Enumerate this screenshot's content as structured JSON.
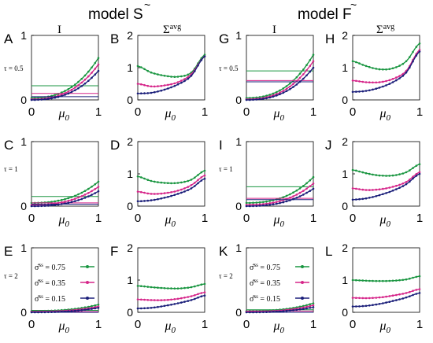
{
  "figure": {
    "model_S_title": "model S",
    "model_S_accent": "~",
    "model_F_title": "model F",
    "model_F_accent": "~",
    "col_I_title": "I",
    "col_sigma_title": "Σ",
    "col_sigma_sup": "avg",
    "row_tau_labels": [
      "τ = 0.5",
      "τ = 1",
      "τ = 2"
    ],
    "panel_letters": [
      "A",
      "B",
      "G",
      "H",
      "C",
      "D",
      "I",
      "J",
      "E",
      "F",
      "K",
      "L"
    ],
    "x_axis_label": "μ",
    "x_axis_sub": "0",
    "x_ticks": [
      "0",
      "1"
    ],
    "I_yticks": [
      "0",
      "1"
    ],
    "sigma_yticks": [
      "0",
      "1",
      "2"
    ],
    "legend": [
      {
        "text": "σ̂ = 0.75",
        "sup": "ss",
        "color": "#1a9641"
      },
      {
        "text": "σ̂ = 0.35",
        "sup": "ss",
        "color": "#d6268a"
      },
      {
        "text": "σ̂ = 0.15",
        "sup": "ss",
        "color": "#1b1f7a"
      }
    ]
  },
  "chart_data": [
    {
      "panel": "A",
      "type": "line",
      "model": "S",
      "quantity": "I",
      "tau": 0.5,
      "ylim": [
        0,
        1
      ],
      "xlim": [
        0,
        1
      ],
      "series": [
        {
          "values_at_0": 0.03,
          "values_at_1": 0.65,
          "threshold": 0.22,
          "color": "#1a9641"
        },
        {
          "values_at_0": 0.01,
          "values_at_1": 0.55,
          "threshold": 0.1,
          "color": "#d6268a"
        },
        {
          "values_at_0": 0.0,
          "values_at_1": 0.45,
          "threshold": 0.05,
          "color": "#1b1f7a"
        }
      ]
    },
    {
      "panel": "B",
      "type": "line",
      "model": "S",
      "quantity": "Σavg",
      "tau": 0.5,
      "ylim": [
        0,
        2
      ],
      "xlim": [
        0,
        1
      ],
      "series": [
        {
          "x": [
            0,
            0.2,
            0.4,
            0.6,
            0.8,
            1
          ],
          "y": [
            1.05,
            0.85,
            0.75,
            0.72,
            0.85,
            1.4
          ],
          "color": "#1a9641"
        },
        {
          "x": [
            0,
            0.2,
            0.4,
            0.6,
            0.8,
            1
          ],
          "y": [
            0.5,
            0.42,
            0.45,
            0.55,
            0.8,
            1.35
          ],
          "color": "#d6268a"
        },
        {
          "x": [
            0,
            0.2,
            0.4,
            0.6,
            0.8,
            1
          ],
          "y": [
            0.2,
            0.22,
            0.32,
            0.48,
            0.75,
            1.35
          ],
          "color": "#1b1f7a"
        }
      ]
    },
    {
      "panel": "G",
      "type": "line",
      "model": "F",
      "quantity": "I",
      "tau": 0.5,
      "ylim": [
        0,
        1
      ],
      "xlim": [
        0,
        1
      ],
      "series": [
        {
          "values_at_0": 0.03,
          "values_at_1": 0.7,
          "threshold": 0.45,
          "color": "#1a9641"
        },
        {
          "values_at_0": 0.01,
          "values_at_1": 0.6,
          "threshold": 0.3,
          "color": "#d6268a"
        },
        {
          "values_at_0": 0.0,
          "values_at_1": 0.5,
          "threshold": 0.28,
          "color": "#1b1f7a"
        }
      ]
    },
    {
      "panel": "H",
      "type": "line",
      "model": "F",
      "quantity": "Σavg",
      "tau": 0.5,
      "ylim": [
        0,
        2
      ],
      "xlim": [
        0,
        1
      ],
      "series": [
        {
          "x": [
            0,
            0.2,
            0.4,
            0.6,
            0.8,
            1
          ],
          "y": [
            1.2,
            1.05,
            0.95,
            0.98,
            1.2,
            1.75
          ],
          "color": "#1a9641"
        },
        {
          "x": [
            0,
            0.2,
            0.4,
            0.6,
            0.8,
            1
          ],
          "y": [
            0.6,
            0.55,
            0.55,
            0.65,
            0.9,
            1.55
          ],
          "color": "#d6268a"
        },
        {
          "x": [
            0,
            0.2,
            0.4,
            0.6,
            0.8,
            1
          ],
          "y": [
            0.25,
            0.28,
            0.38,
            0.55,
            0.85,
            1.5
          ],
          "color": "#1b1f7a"
        }
      ]
    },
    {
      "panel": "C",
      "type": "line",
      "model": "S",
      "quantity": "I",
      "tau": 1,
      "ylim": [
        0,
        1
      ],
      "xlim": [
        0,
        1
      ],
      "series": [
        {
          "values_at_0": 0.05,
          "values_at_1": 0.38,
          "threshold": 0.15,
          "color": "#1a9641"
        },
        {
          "values_at_0": 0.02,
          "values_at_1": 0.3,
          "threshold": 0.05,
          "color": "#d6268a"
        },
        {
          "values_at_0": 0.0,
          "values_at_1": 0.23,
          "threshold": 0.03,
          "color": "#1b1f7a"
        }
      ]
    },
    {
      "panel": "D",
      "type": "line",
      "model": "S",
      "quantity": "Σavg",
      "tau": 1,
      "ylim": [
        0,
        2
      ],
      "xlim": [
        0,
        1
      ],
      "series": [
        {
          "x": [
            0,
            0.2,
            0.4,
            0.6,
            0.8,
            1
          ],
          "y": [
            0.92,
            0.78,
            0.72,
            0.72,
            0.82,
            1.1
          ],
          "color": "#1a9641"
        },
        {
          "x": [
            0,
            0.2,
            0.4,
            0.6,
            0.8,
            1
          ],
          "y": [
            0.45,
            0.38,
            0.4,
            0.48,
            0.65,
            0.95
          ],
          "color": "#d6268a"
        },
        {
          "x": [
            0,
            0.2,
            0.4,
            0.6,
            0.8,
            1
          ],
          "y": [
            0.15,
            0.18,
            0.26,
            0.38,
            0.55,
            0.85
          ],
          "color": "#1b1f7a"
        }
      ]
    },
    {
      "panel": "I",
      "type": "line",
      "model": "F",
      "quantity": "I",
      "tau": 1,
      "ylim": [
        0,
        1
      ],
      "xlim": [
        0,
        1
      ],
      "series": [
        {
          "values_at_0": 0.05,
          "values_at_1": 0.45,
          "threshold": 0.3,
          "color": "#1a9641"
        },
        {
          "values_at_0": 0.02,
          "values_at_1": 0.35,
          "threshold": 0.12,
          "color": "#d6268a"
        },
        {
          "values_at_0": 0.0,
          "values_at_1": 0.27,
          "threshold": 0.1,
          "color": "#1b1f7a"
        }
      ]
    },
    {
      "panel": "J",
      "type": "line",
      "model": "F",
      "quantity": "Σavg",
      "tau": 1,
      "ylim": [
        0,
        2
      ],
      "xlim": [
        0,
        1
      ],
      "series": [
        {
          "x": [
            0,
            0.2,
            0.4,
            0.6,
            0.8,
            1
          ],
          "y": [
            1.12,
            1.02,
            0.95,
            0.95,
            1.05,
            1.3
          ],
          "color": "#1a9641"
        },
        {
          "x": [
            0,
            0.2,
            0.4,
            0.6,
            0.8,
            1
          ],
          "y": [
            0.55,
            0.5,
            0.52,
            0.6,
            0.75,
            1.05
          ],
          "color": "#d6268a"
        },
        {
          "x": [
            0,
            0.2,
            0.4,
            0.6,
            0.8,
            1
          ],
          "y": [
            0.2,
            0.24,
            0.34,
            0.48,
            0.68,
            1.0
          ],
          "color": "#1b1f7a"
        }
      ]
    },
    {
      "panel": "E",
      "type": "line",
      "model": "S",
      "quantity": "I",
      "tau": 2,
      "ylim": [
        0,
        1
      ],
      "xlim": [
        0,
        1
      ],
      "series": [
        {
          "values_at_0": 0.02,
          "values_at_1": 0.12,
          "threshold": 0.03,
          "color": "#1a9641"
        },
        {
          "values_at_0": 0.01,
          "values_at_1": 0.09,
          "threshold": 0.01,
          "color": "#d6268a"
        },
        {
          "values_at_0": 0.0,
          "values_at_1": 0.07,
          "threshold": 0.0,
          "color": "#1b1f7a"
        }
      ]
    },
    {
      "panel": "F",
      "type": "line",
      "model": "S",
      "quantity": "Σavg",
      "tau": 2,
      "ylim": [
        0,
        2
      ],
      "xlim": [
        0,
        1
      ],
      "series": [
        {
          "x": [
            0,
            0.2,
            0.4,
            0.6,
            0.8,
            1
          ],
          "y": [
            0.82,
            0.78,
            0.75,
            0.74,
            0.78,
            0.88
          ],
          "color": "#1a9641"
        },
        {
          "x": [
            0,
            0.2,
            0.4,
            0.6,
            0.8,
            1
          ],
          "y": [
            0.4,
            0.38,
            0.38,
            0.42,
            0.5,
            0.62
          ],
          "color": "#d6268a"
        },
        {
          "x": [
            0,
            0.2,
            0.4,
            0.6,
            0.8,
            1
          ],
          "y": [
            0.12,
            0.14,
            0.2,
            0.28,
            0.38,
            0.52
          ],
          "color": "#1b1f7a"
        }
      ]
    },
    {
      "panel": "K",
      "type": "line",
      "model": "F",
      "quantity": "I",
      "tau": 2,
      "ylim": [
        0,
        1
      ],
      "xlim": [
        0,
        1
      ],
      "series": [
        {
          "values_at_0": 0.02,
          "values_at_1": 0.14,
          "threshold": 0.04,
          "color": "#1a9641"
        },
        {
          "values_at_0": 0.01,
          "values_at_1": 0.11,
          "threshold": 0.02,
          "color": "#d6268a"
        },
        {
          "values_at_0": 0.0,
          "values_at_1": 0.08,
          "threshold": 0.0,
          "color": "#1b1f7a"
        }
      ]
    },
    {
      "panel": "L",
      "type": "line",
      "model": "F",
      "quantity": "Σavg",
      "tau": 2,
      "ylim": [
        0,
        2
      ],
      "xlim": [
        0,
        1
      ],
      "series": [
        {
          "x": [
            0,
            0.2,
            0.4,
            0.6,
            0.8,
            1
          ],
          "y": [
            1.0,
            0.98,
            0.97,
            0.98,
            1.02,
            1.12
          ],
          "color": "#1a9641"
        },
        {
          "x": [
            0,
            0.2,
            0.4,
            0.6,
            0.8,
            1
          ],
          "y": [
            0.45,
            0.44,
            0.46,
            0.52,
            0.6,
            0.72
          ],
          "color": "#d6268a"
        },
        {
          "x": [
            0,
            0.2,
            0.4,
            0.6,
            0.8,
            1
          ],
          "y": [
            0.18,
            0.2,
            0.26,
            0.35,
            0.46,
            0.6
          ],
          "color": "#1b1f7a"
        }
      ]
    }
  ]
}
